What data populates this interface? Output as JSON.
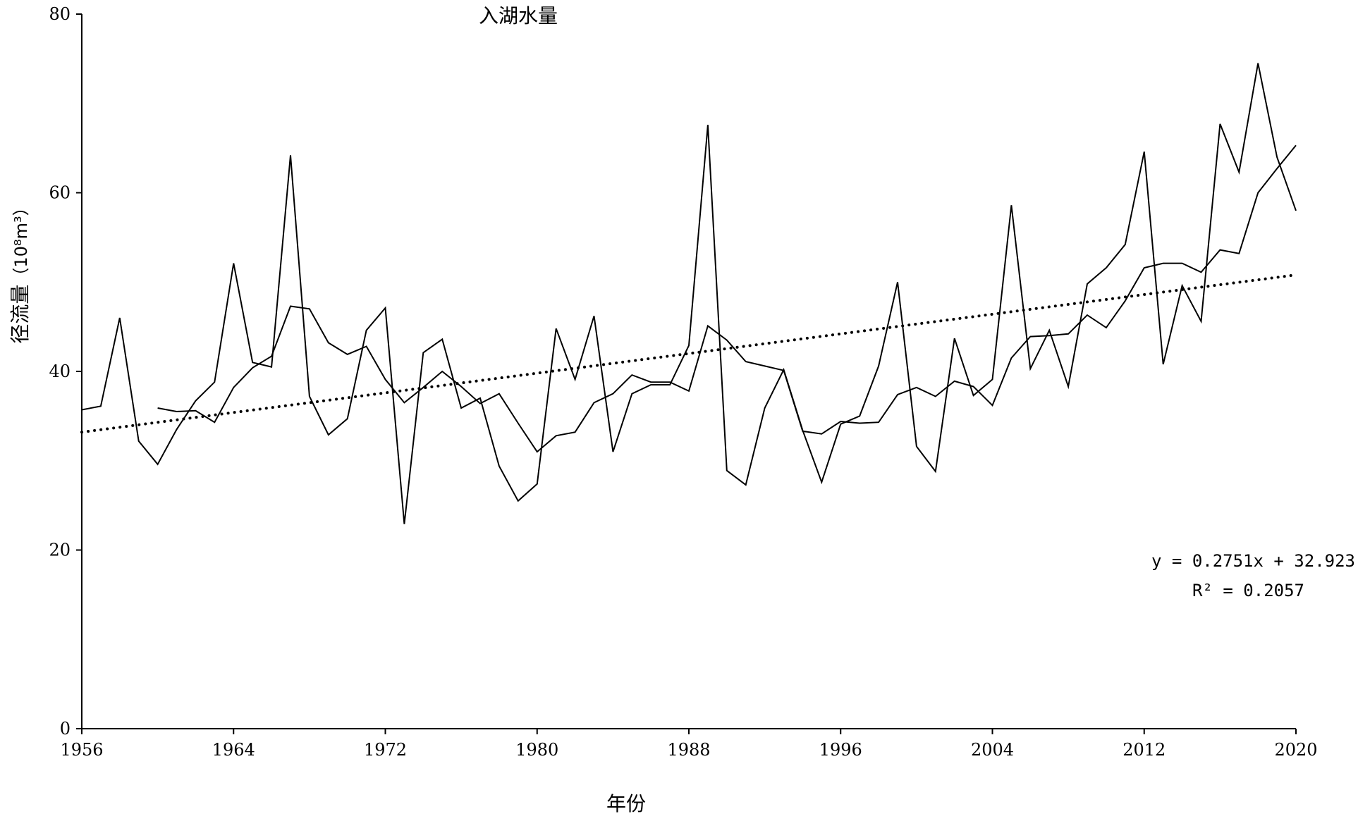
{
  "chart_data": {
    "type": "line",
    "title": "入湖水量",
    "xlabel": "年份",
    "ylabel_main": "径流量",
    "ylabel_unit": "（10⁸m³）",
    "xlim": [
      1956,
      2020
    ],
    "ylim": [
      0,
      80
    ],
    "xticks": [
      1956,
      1964,
      1972,
      1980,
      1988,
      1996,
      2004,
      2012,
      2020
    ],
    "yticks": [
      0,
      20,
      40,
      60,
      80
    ],
    "grid": false,
    "series": [
      {
        "kind": "annual",
        "x": [
          1956,
          1957,
          1958,
          1959,
          1960,
          1961,
          1962,
          1963,
          1964,
          1965,
          1966,
          1967,
          1968,
          1969,
          1970,
          1971,
          1972,
          1973,
          1974,
          1975,
          1976,
          1977,
          1978,
          1979,
          1980,
          1981,
          1982,
          1983,
          1984,
          1985,
          1986,
          1987,
          1988,
          1989,
          1990,
          1991,
          1992,
          1993,
          1994,
          1995,
          1996,
          1997,
          1998,
          1999,
          2000,
          2001,
          2002,
          2003,
          2004,
          2005,
          2006,
          2007,
          2008,
          2009,
          2010,
          2011,
          2012,
          2013,
          2014,
          2015,
          2016,
          2017,
          2018,
          2019,
          2020
        ],
        "y": [
          35.7,
          36.1,
          46.0,
          32.2,
          29.6,
          33.5,
          36.7,
          38.8,
          52.1,
          41.0,
          40.5,
          64.2,
          37.2,
          32.9,
          34.7,
          44.6,
          47.1,
          22.9,
          42.1,
          43.6,
          35.9,
          37.0,
          29.4,
          25.5,
          27.4,
          44.8,
          39.1,
          46.2,
          31.0,
          37.5,
          38.5,
          38.5,
          42.9,
          67.6,
          28.9,
          27.3,
          35.9,
          40.2,
          33.4,
          27.6,
          34.1,
          35.0,
          40.6,
          50.0,
          31.6,
          28.8,
          43.7,
          37.3,
          39.1,
          58.6,
          40.3,
          44.6,
          38.3,
          49.8,
          51.6,
          54.2,
          64.6,
          40.8,
          49.6,
          45.6,
          67.7,
          62.3,
          74.5,
          64.0,
          58.0
        ]
      },
      {
        "kind": "moving-average",
        "x": [
          1960,
          1961,
          1962,
          1963,
          1964,
          1965,
          1966,
          1967,
          1968,
          1969,
          1970,
          1971,
          1972,
          1973,
          1974,
          1975,
          1976,
          1977,
          1978,
          1979,
          1980,
          1981,
          1982,
          1983,
          1984,
          1985,
          1986,
          1987,
          1988,
          1989,
          1990,
          1991,
          1992,
          1993,
          1994,
          1995,
          1996,
          1997,
          1998,
          1999,
          2000,
          2001,
          2002,
          2003,
          2004,
          2005,
          2006,
          2007,
          2008,
          2009,
          2010,
          2011,
          2012,
          2013,
          2014,
          2015,
          2016,
          2017,
          2018,
          2019,
          2020
        ],
        "y": [
          35.9,
          35.5,
          35.6,
          34.3,
          38.2,
          40.4,
          41.7,
          47.3,
          47.0,
          43.2,
          41.9,
          42.8,
          39.1,
          36.5,
          38.2,
          40.0,
          38.3,
          36.4,
          37.5,
          34.2,
          31.0,
          32.8,
          33.2,
          36.5,
          37.5,
          39.6,
          38.8,
          38.8,
          37.8,
          45.1,
          43.5,
          41.1,
          40.6,
          40.1,
          33.3,
          33.0,
          34.4,
          34.2,
          34.3,
          37.4,
          38.2,
          37.2,
          38.9,
          38.3,
          36.2,
          41.5,
          43.9,
          44.0,
          44.2,
          46.3,
          44.9,
          47.9,
          51.6,
          52.1,
          52.1,
          51.1,
          53.6,
          53.2,
          60.0,
          62.7,
          65.3
        ]
      },
      {
        "kind": "linear-trend",
        "slope": 0.2751,
        "intercept": 32.923,
        "x_index_start": 1,
        "x_start": 1956,
        "x_end": 2020
      }
    ],
    "annotations": {
      "equation": "y = 0.2751x + 32.923",
      "r_squared": "R² = 0.2057"
    }
  }
}
